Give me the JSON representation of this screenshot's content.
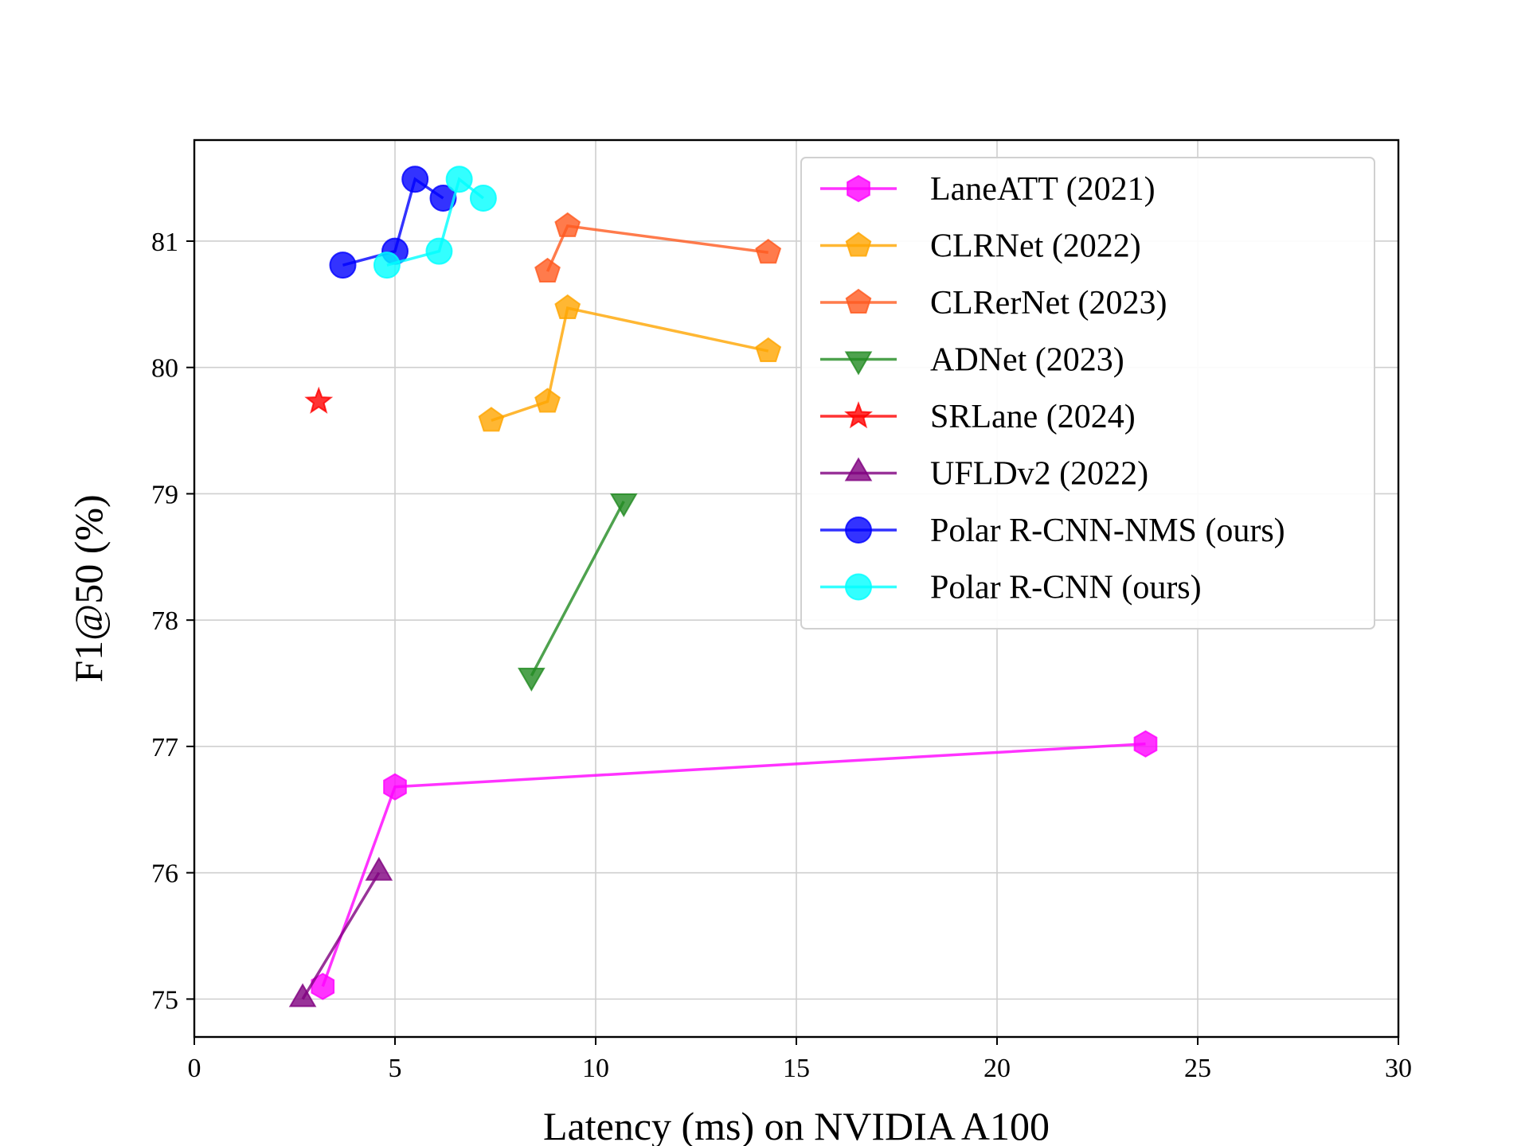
{
  "chart_data": {
    "type": "line",
    "title": "",
    "xlabel": "Latency (ms) on NVIDIA A100",
    "ylabel": "F1@50 (%)",
    "xlim": [
      0,
      30
    ],
    "ylim": [
      74.7,
      81.8
    ],
    "xticks": [
      0,
      5,
      10,
      15,
      20,
      25,
      30
    ],
    "yticks": [
      75,
      76,
      77,
      78,
      79,
      80,
      81
    ],
    "grid": true,
    "legend_position": "top-right",
    "series": [
      {
        "name": "LaneATT (2021)",
        "color": "#ff00ff",
        "marker": "hexagon",
        "points": [
          [
            3.2,
            75.1
          ],
          [
            5.0,
            76.68
          ],
          [
            23.7,
            77.02
          ]
        ]
      },
      {
        "name": "CLRNet (2022)",
        "color": "#ffa500",
        "marker": "pentagon",
        "points": [
          [
            7.4,
            79.58
          ],
          [
            8.8,
            79.73
          ],
          [
            9.3,
            80.47
          ],
          [
            14.3,
            80.13
          ]
        ]
      },
      {
        "name": "CLRerNet (2023)",
        "color": "#ff5a1f",
        "marker": "pentagon",
        "points": [
          [
            8.8,
            80.76
          ],
          [
            9.3,
            81.12
          ],
          [
            14.3,
            80.91
          ]
        ]
      },
      {
        "name": "ADNet (2023)",
        "color": "#228b22",
        "marker": "triangle-down",
        "points": [
          [
            8.4,
            77.56
          ],
          [
            10.7,
            78.94
          ]
        ]
      },
      {
        "name": "SRLane (2024)",
        "color": "#ff0000",
        "marker": "star",
        "points": [
          [
            3.1,
            79.73
          ]
        ]
      },
      {
        "name": "UFLDv2 (2022)",
        "color": "#800080",
        "marker": "triangle-up",
        "points": [
          [
            2.7,
            75.0
          ],
          [
            4.6,
            76.0
          ]
        ]
      },
      {
        "name": "Polar R-CNN-NMS (ours)",
        "color": "#0000ff",
        "marker": "circle",
        "points": [
          [
            3.7,
            80.81
          ],
          [
            5.0,
            80.92
          ],
          [
            5.5,
            81.49
          ],
          [
            6.2,
            81.34
          ]
        ]
      },
      {
        "name": "Polar R-CNN (ours)",
        "color": "#00ffff",
        "marker": "circle",
        "points": [
          [
            4.8,
            80.81
          ],
          [
            6.1,
            80.92
          ],
          [
            6.6,
            81.49
          ],
          [
            7.2,
            81.34
          ]
        ]
      }
    ]
  }
}
